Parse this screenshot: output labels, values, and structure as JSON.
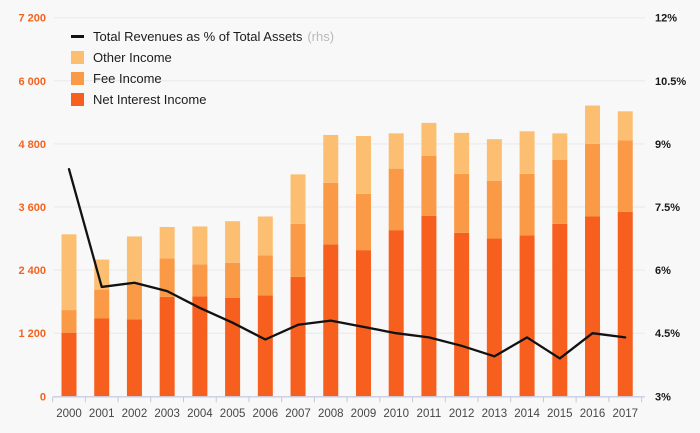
{
  "chart_data": {
    "type": "bar",
    "subtype": "stacked-bars-with-line-overlay",
    "title": "",
    "categories": [
      "2000",
      "2001",
      "2002",
      "2003",
      "2004",
      "2005",
      "2006",
      "2007",
      "2008",
      "2009",
      "2010",
      "2011",
      "2012",
      "2013",
      "2014",
      "2015",
      "2016",
      "2017"
    ],
    "series": [
      {
        "name": "Net Interest Income",
        "type": "bar",
        "color": "#f75f1e",
        "values": [
          1210,
          1480,
          1460,
          1890,
          1900,
          1870,
          1920,
          2270,
          2890,
          2780,
          3160,
          3430,
          3110,
          3000,
          3060,
          3280,
          3420,
          3510
        ]
      },
      {
        "name": "Fee Income",
        "type": "bar",
        "color": "#fa9a47",
        "values": [
          430,
          550,
          690,
          730,
          610,
          670,
          760,
          1010,
          1170,
          1070,
          1170,
          1140,
          1120,
          1100,
          1170,
          1220,
          1380,
          1360
        ]
      },
      {
        "name": "Other Income",
        "type": "bar",
        "color": "#fcbf72",
        "values": [
          1440,
          570,
          890,
          600,
          720,
          790,
          740,
          940,
          910,
          1100,
          670,
          630,
          780,
          790,
          810,
          500,
          730,
          550
        ]
      },
      {
        "name": "Total Revenues as % of Total Assets",
        "type": "line",
        "axis": "rhs",
        "color": "#121212",
        "values": [
          8.4,
          5.6,
          5.7,
          5.5,
          5.1,
          4.75,
          4.35,
          4.7,
          4.8,
          4.65,
          4.5,
          4.4,
          4.2,
          3.95,
          4.4,
          3.9,
          4.5,
          4.4
        ]
      }
    ],
    "left_axis": {
      "min": 0,
      "max": 7200,
      "step": 1200,
      "labels": [
        "0",
        "1 200",
        "2 400",
        "3 600",
        "4 800",
        "6 000",
        "7 200"
      ],
      "label_color": "#f4631e"
    },
    "right_axis": {
      "min": 3,
      "max": 12,
      "step": 1.5,
      "labels": [
        "3%",
        "4.5%",
        "6%",
        "7.5%",
        "9%",
        "10.5%",
        "12%"
      ],
      "label_color": "#1a1a1a"
    },
    "legend_position": "top-left-inside-plot",
    "grid": true,
    "legend": {
      "items": [
        {
          "swatch": "line",
          "color": "#121212",
          "label": "Total Revenues as % of Total Assets",
          "suffix": "(rhs)"
        },
        {
          "swatch": "square",
          "color": "#fcbf72",
          "label": "Other Income",
          "suffix": ""
        },
        {
          "swatch": "square",
          "color": "#fa9a47",
          "label": "Fee Income",
          "suffix": ""
        },
        {
          "swatch": "square",
          "color": "#f75f1e",
          "label": "Net Interest Income",
          "suffix": ""
        }
      ]
    }
  },
  "colors": {
    "background": "#f8f8f8",
    "gridline": "#e9e9e9",
    "axis_line": "#c9cde2",
    "tick": "#c3c8de",
    "year_label": "#474747"
  }
}
